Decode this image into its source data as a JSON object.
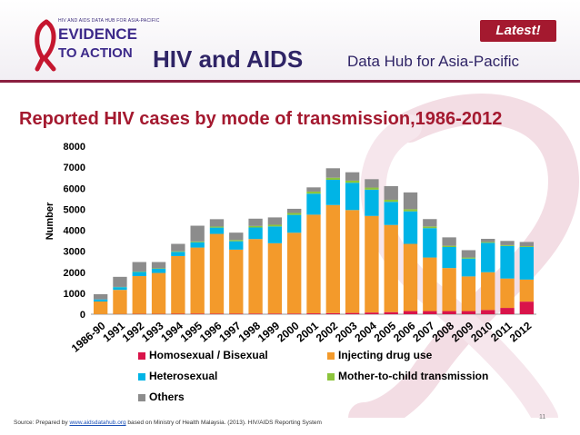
{
  "header": {
    "badge": "Latest!",
    "logo_small": "HIV AND AIDS DATA HUB FOR ASIA-PACIFIC",
    "logo_main": "EVIDENCE",
    "logo_sub": "TO ACTION",
    "title": "HIV and AIDS",
    "subtitle": "Data Hub for Asia-Pacific"
  },
  "chart_data": {
    "type": "bar",
    "stacked": true,
    "title": "Reported HIV cases by mode of transmission,1986-2012",
    "ylabel": "Number",
    "xlabel": "",
    "ylim": [
      0,
      8000
    ],
    "yticks": [
      "0",
      "1000",
      "2000",
      "3000",
      "4000",
      "5000",
      "6000",
      "7000",
      "8000"
    ],
    "categories": [
      "1986-90",
      "1991",
      "1992",
      "1993",
      "1994",
      "1995",
      "1996",
      "1997",
      "1998",
      "1999",
      "2000",
      "2001",
      "2002",
      "2003",
      "2004",
      "2005",
      "2006",
      "2007",
      "2008",
      "2009",
      "2010",
      "2011",
      "2012"
    ],
    "series": [
      {
        "name": "Homosexual / Bisexual",
        "color": "#d9144a",
        "values": [
          5,
          10,
          15,
          15,
          20,
          25,
          25,
          25,
          30,
          30,
          30,
          40,
          50,
          60,
          80,
          100,
          150,
          150,
          150,
          150,
          200,
          300,
          600
        ]
      },
      {
        "name": "Injecting drug use",
        "color": "#f39a2b",
        "values": [
          600,
          1150,
          1800,
          1950,
          2750,
          3150,
          3800,
          3050,
          3550,
          3350,
          3850,
          4700,
          5150,
          4900,
          4600,
          4150,
          3200,
          2550,
          2050,
          1650,
          1800,
          1400,
          1050
        ]
      },
      {
        "name": "Heterosexual",
        "color": "#00b4e6",
        "values": [
          100,
          130,
          200,
          200,
          200,
          250,
          300,
          400,
          550,
          800,
          850,
          1000,
          1200,
          1300,
          1250,
          1100,
          1550,
          1400,
          1000,
          850,
          1400,
          1550,
          1550
        ]
      },
      {
        "name": "Mother-to-child transmission",
        "color": "#8cc43c",
        "values": [
          0,
          10,
          20,
          20,
          30,
          40,
          50,
          60,
          70,
          80,
          90,
          100,
          100,
          100,
          100,
          100,
          100,
          80,
          60,
          50,
          40,
          40,
          40
        ]
      },
      {
        "name": "Others",
        "color": "#8c8c8c",
        "values": [
          250,
          480,
          450,
          300,
          350,
          750,
          350,
          350,
          350,
          350,
          200,
          200,
          450,
          400,
          400,
          650,
          800,
          350,
          400,
          350,
          150,
          200,
          200
        ]
      }
    ],
    "legend_position": "bottom",
    "grid": false
  },
  "footer": {
    "source_prefix": "Source: Prepared by",
    "source_link": "www.aidsdatahub.org",
    "source_suffix": " based on Ministry of Health Malaysia. (2013). HIV/AIDS Reporting System",
    "page_number": "11"
  }
}
